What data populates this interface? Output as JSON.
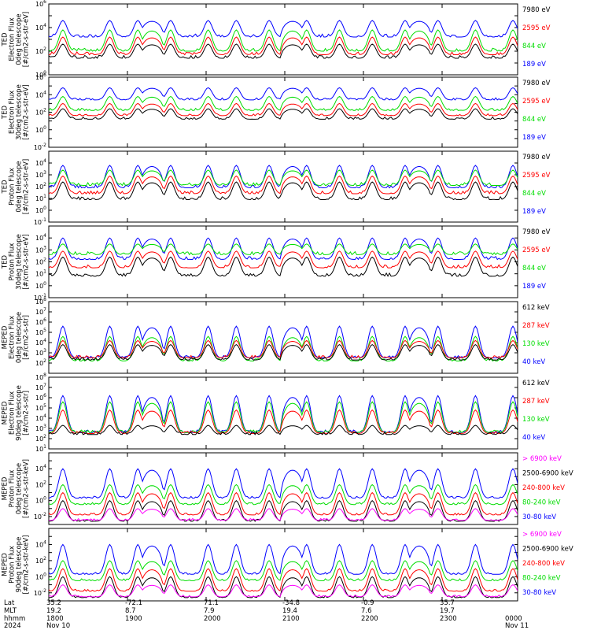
{
  "chart_data": {
    "type": "line",
    "x_ticks": {
      "labels": [
        "1800",
        "1900",
        "2000",
        "2100",
        "2200",
        "2300",
        "0000"
      ]
    },
    "footer": {
      "rows": [
        {
          "label": "Lat",
          "values": [
            "35.2",
            "-72.1",
            "71.1",
            "-34.8",
            "-0.9",
            "35.7",
            ""
          ]
        },
        {
          "label": "MLT",
          "values": [
            "19.2",
            "8.7",
            "7.9",
            "19.4",
            "7.6",
            "19.7",
            ""
          ]
        },
        {
          "label": "hhmm",
          "values": [
            "1800",
            "1900",
            "2000",
            "2100",
            "2200",
            "2300",
            "0000"
          ]
        },
        {
          "label": "2024",
          "values": [
            "Nov 10",
            "",
            "",
            "",
            "",
            "",
            "Nov 11"
          ]
        }
      ]
    },
    "panels": [
      {
        "ylabel_lines": [
          "TED",
          "Electron Flux",
          "0deg telescope",
          "[#/cm2-s-str-eV]"
        ],
        "yscale": "log",
        "ylim_exp": [
          0,
          6
        ],
        "tick_exps": [
          0,
          2,
          4,
          6
        ],
        "series": [
          {
            "name": "7980 eV",
            "color": "#000000",
            "base": 1.4,
            "peak": 2.6
          },
          {
            "name": "2595 eV",
            "color": "#ff0000",
            "base": 1.7,
            "peak": 3.2
          },
          {
            "name": "844 eV",
            "color": "#00dd00",
            "base": 2.0,
            "peak": 3.8
          },
          {
            "name": "189 eV",
            "color": "#0000ff",
            "base": 3.2,
            "peak": 4.6
          }
        ]
      },
      {
        "ylabel_lines": [
          "TED",
          "Electron Flux",
          "30deg telescope",
          "[#/cm2-s-str-eV]"
        ],
        "yscale": "log",
        "ylim_exp": [
          -2,
          6
        ],
        "tick_exps": [
          -2,
          0,
          2,
          4,
          6
        ],
        "series": [
          {
            "name": "7980 eV",
            "color": "#000000",
            "base": 1.2,
            "peak": 2.4
          },
          {
            "name": "2595 eV",
            "color": "#ff0000",
            "base": 1.6,
            "peak": 3.0
          },
          {
            "name": "844 eV",
            "color": "#00dd00",
            "base": 2.2,
            "peak": 3.8
          },
          {
            "name": "189 eV",
            "color": "#0000ff",
            "base": 3.4,
            "peak": 4.8
          }
        ]
      },
      {
        "ylabel_lines": [
          "TED",
          "Proton Flux",
          "0deg telescope",
          "[#/cm2-s-str-eV]"
        ],
        "yscale": "log",
        "ylim_exp": [
          -1,
          5
        ],
        "tick_exps": [
          -1,
          0,
          1,
          2,
          3,
          4
        ],
        "series": [
          {
            "name": "7980 eV",
            "color": "#000000",
            "base": 0.9,
            "peak": 2.4
          },
          {
            "name": "2595 eV",
            "color": "#ff0000",
            "base": 1.4,
            "peak": 2.9
          },
          {
            "name": "844 eV",
            "color": "#00dd00",
            "base": 2.1,
            "peak": 3.4
          },
          {
            "name": "189 eV",
            "color": "#0000ff",
            "base": 1.9,
            "peak": 3.8
          }
        ]
      },
      {
        "ylabel_lines": [
          "TED",
          "Proton Flux",
          "30deg telescope",
          "[#/cm2-s-str-eV]"
        ],
        "yscale": "log",
        "ylim_exp": [
          -1,
          5
        ],
        "tick_exps": [
          -1,
          0,
          1,
          2,
          3,
          4
        ],
        "series": [
          {
            "name": "7980 eV",
            "color": "#000000",
            "base": 0.8,
            "peak": 2.4
          },
          {
            "name": "2595 eV",
            "color": "#ff0000",
            "base": 1.5,
            "peak": 2.9
          },
          {
            "name": "844 eV",
            "color": "#00dd00",
            "base": 2.6,
            "peak": 3.5
          },
          {
            "name": "189 eV",
            "color": "#0000ff",
            "base": 2.2,
            "peak": 4.0
          }
        ]
      },
      {
        "ylabel_lines": [
          "MEPED",
          "Electron Flux",
          "0deg telescope",
          "[#/cm2-s-str]"
        ],
        "yscale": "log",
        "ylim_exp": [
          1,
          8
        ],
        "tick_exps": [
          2,
          3,
          4,
          5,
          6,
          7,
          8
        ],
        "series": [
          {
            "name": "612 keV",
            "color": "#000000",
            "base": 2.3,
            "peak": 3.8
          },
          {
            "name": "287 keV",
            "color": "#ff0000",
            "base": 2.5,
            "peak": 4.2
          },
          {
            "name": "130 keV",
            "color": "#00dd00",
            "base": 2.2,
            "peak": 4.6
          },
          {
            "name": "40 keV",
            "color": "#0000ff",
            "base": 2.5,
            "peak": 5.6
          }
        ]
      },
      {
        "ylabel_lines": [
          "MEPED",
          "Electron Flux",
          "90deg telescope",
          "[#/cm2-s-str]"
        ],
        "yscale": "log",
        "ylim_exp": [
          1,
          8
        ],
        "tick_exps": [
          1,
          2,
          3,
          4,
          5,
          6,
          7,
          8
        ],
        "series": [
          {
            "name": "612 keV",
            "color": "#000000",
            "base": 2.4,
            "peak": 3.3
          },
          {
            "name": "287 keV",
            "color": "#ff0000",
            "base": 2.5,
            "peak": 4.8
          },
          {
            "name": "130 keV",
            "color": "#00dd00",
            "base": 2.6,
            "peak": 5.6
          },
          {
            "name": "40 keV",
            "color": "#0000ff",
            "base": 2.6,
            "peak": 6.2
          }
        ]
      },
      {
        "ylabel_lines": [
          "MEPED",
          "Proton Flux",
          "0deg telescope",
          "[#/cm2-s-str-keV]"
        ],
        "yscale": "log",
        "ylim_exp": [
          -3,
          6
        ],
        "tick_exps": [
          -2,
          0,
          2,
          4
        ],
        "series": [
          {
            "name": "> 6900 keV",
            "color": "#ff00ff",
            "base": -2.5,
            "peak": -1.0
          },
          {
            "name": "2500-6900 keV",
            "color": "#000000",
            "base": -2.6,
            "peak": 0.0
          },
          {
            "name": "240-800 keV",
            "color": "#ff0000",
            "base": -1.8,
            "peak": 1.0
          },
          {
            "name": "80-240 keV",
            "color": "#00dd00",
            "base": -0.5,
            "peak": 2.0
          },
          {
            "name": "30-80 keV",
            "color": "#0000ff",
            "base": 0.3,
            "peak": 4.0
          }
        ]
      },
      {
        "ylabel_lines": [
          "MEPED",
          "Proton Flux",
          "90deg telescope",
          "[#/cm2-s-str-keV]"
        ],
        "yscale": "log",
        "ylim_exp": [
          -3,
          6
        ],
        "tick_exps": [
          -2,
          0,
          2,
          4
        ],
        "series": [
          {
            "name": "> 6900 keV",
            "color": "#ff00ff",
            "base": -2.5,
            "peak": -1.0
          },
          {
            "name": "2500-6900 keV",
            "color": "#000000",
            "base": -2.6,
            "peak": 0.0
          },
          {
            "name": "240-800 keV",
            "color": "#ff0000",
            "base": -1.8,
            "peak": 1.0
          },
          {
            "name": "80-240 keV",
            "color": "#00dd00",
            "base": -0.5,
            "peak": 2.0
          },
          {
            "name": "30-80 keV",
            "color": "#0000ff",
            "base": 0.3,
            "peak": 4.0
          }
        ]
      }
    ]
  }
}
